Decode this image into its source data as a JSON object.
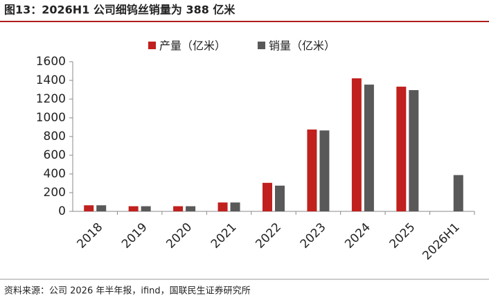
{
  "chart_data": {
    "type": "bar",
    "title": "图13：2026H1 公司细钨丝销量为 388 亿米",
    "source": "资料来源：公司 2026 年半年报，ifind，国联民生证券研究所",
    "categories": [
      "2018",
      "2019",
      "2020",
      "2021",
      "2022",
      "2023",
      "2024",
      "2025",
      "2026H1"
    ],
    "series": [
      {
        "name": "产量（亿米）",
        "color": "#c0201e",
        "values": [
          65,
          55,
          55,
          95,
          305,
          875,
          1422,
          1333,
          null
        ]
      },
      {
        "name": "销量（亿米）",
        "color": "#595959",
        "values": [
          65,
          55,
          55,
          95,
          275,
          865,
          1355,
          1296,
          388
        ]
      }
    ],
    "ylim": [
      0,
      1600
    ],
    "yticks": [
      0,
      200,
      400,
      600,
      800,
      1000,
      1200,
      1400,
      1600
    ],
    "legend": "top"
  }
}
